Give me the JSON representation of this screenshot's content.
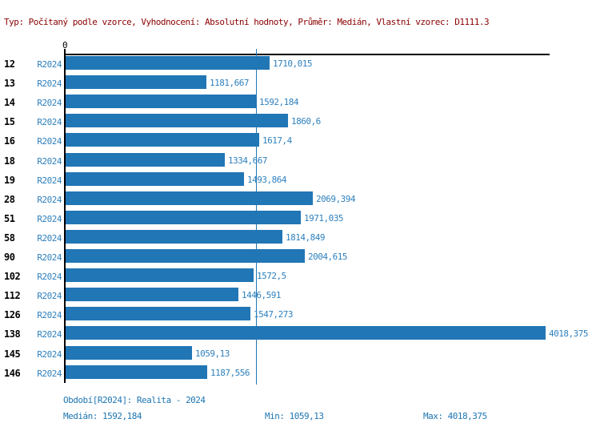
{
  "header": {
    "text": "Typ: Počítaný podle vzorce, Vyhodnocení: Absolutní hodnoty, Průměr: Medián, Vlastní vzorec: D1111.3"
  },
  "chart_data": {
    "type": "bar",
    "orientation": "horizontal",
    "series_label": "R2024",
    "categories": [
      "12",
      "13",
      "14",
      "15",
      "16",
      "18",
      "19",
      "28",
      "51",
      "58",
      "90",
      "102",
      "112",
      "126",
      "138",
      "145",
      "146"
    ],
    "values": [
      1710.015,
      1181.667,
      1592.184,
      1860.6,
      1617.4,
      1334.667,
      1493.864,
      2069.394,
      1971.035,
      1814.849,
      2004.615,
      1572.5,
      1446.591,
      1547.273,
      4018.375,
      1059.13,
      1187.556
    ],
    "value_labels": [
      "1710,015",
      "1181,667",
      "1592,184",
      "1860,6",
      "1617,4",
      "1334,667",
      "1493,864",
      "2069,394",
      "1971,035",
      "1814,849",
      "2004,615",
      "1572,5",
      "1446,591",
      "1547,273",
      "4018,375",
      "1059,13",
      "1187,556"
    ],
    "axis": {
      "zero_label": "0",
      "min": 0,
      "max_value": 4018.375,
      "median_value": 1592.184,
      "median_gridline": true,
      "grid": "single-median-line"
    },
    "legend_position": "none",
    "colors": {
      "bar": "#2176b5",
      "value_text": "#2e80be",
      "series_text": "#2e80be",
      "category_text": "#000000",
      "axis": "#000000",
      "median_line": "#2176b5",
      "header_text": "#8b0000",
      "footer_text": "#1d76b4",
      "background": "#ffffff"
    }
  },
  "footer": {
    "period": "Období[R2024]: Realita - 2024",
    "median": "Medián: 1592,184",
    "min": "Min: 1059,13",
    "max": "Max: 4018,375"
  }
}
